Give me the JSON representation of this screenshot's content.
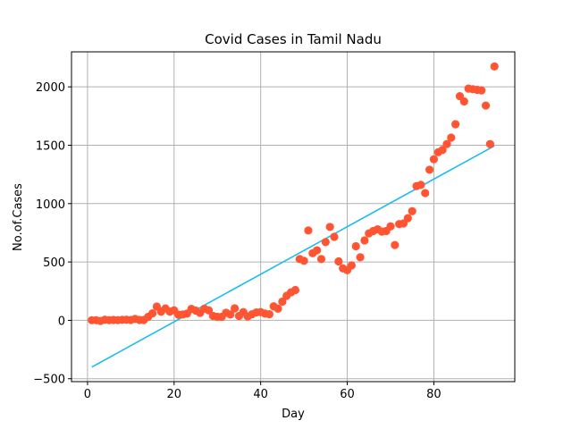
{
  "chart_data": {
    "type": "scatter",
    "title": "Covid Cases in Tamil Nadu",
    "xlabel": "Day",
    "ylabel": "No.of.Cases",
    "xlim": [
      -3.7,
      98.7
    ],
    "ylim": [
      -525,
      2300
    ],
    "xticks": [
      0,
      20,
      40,
      60,
      80
    ],
    "yticks": [
      -500,
      0,
      500,
      1000,
      1500,
      2000
    ],
    "grid": true,
    "colors": {
      "points": "#ff5533",
      "fit_line": "#1abcf0",
      "grid": "#b0b0b0",
      "axes": "#000000"
    },
    "series": [
      {
        "kind": "points",
        "x": [
          1,
          2,
          3,
          4,
          5,
          6,
          7,
          8,
          9,
          10,
          11,
          12,
          13,
          14,
          15,
          16,
          17,
          18,
          19,
          20,
          21,
          22,
          23,
          24,
          25,
          26,
          27,
          28,
          29,
          30,
          31,
          32,
          33,
          34,
          35,
          36,
          37,
          38,
          39,
          40,
          41,
          42,
          43,
          44,
          45,
          46,
          47,
          48,
          49,
          50,
          51,
          52,
          53,
          54,
          55,
          56,
          57,
          58,
          59,
          60,
          61,
          62,
          63,
          64,
          65,
          66,
          67,
          68,
          69,
          70,
          71,
          72,
          73,
          74,
          75,
          76,
          77,
          78,
          79,
          80,
          81,
          82,
          83,
          84,
          85,
          86,
          87,
          88,
          89,
          90,
          91,
          92,
          93,
          94
        ],
        "y": [
          1,
          1,
          -5,
          5,
          2,
          3,
          2,
          4,
          5,
          3,
          12,
          3,
          3,
          30,
          60,
          118,
          74,
          102,
          75,
          86,
          48,
          50,
          58,
          98,
          84,
          64,
          100,
          86,
          38,
          30,
          30,
          65,
          50,
          103,
          38,
          70,
          33,
          52,
          68,
          70,
          58,
          52,
          120,
          100,
          160,
          210,
          240,
          260,
          525,
          510,
          770,
          575,
          600,
          525,
          670,
          800,
          715,
          505,
          445,
          430,
          470,
          635,
          540,
          685,
          745,
          765,
          780,
          760,
          765,
          805,
          645,
          825,
          830,
          875,
          935,
          1150,
          1160,
          1090,
          1290,
          1380,
          1440,
          1460,
          1510,
          1565,
          1680,
          1920,
          1875,
          1985,
          1980,
          1975,
          1970,
          1840,
          1510,
          2175
        ]
      },
      {
        "kind": "fit_line",
        "x": [
          1,
          94
        ],
        "y": [
          -400,
          1495
        ]
      }
    ]
  }
}
